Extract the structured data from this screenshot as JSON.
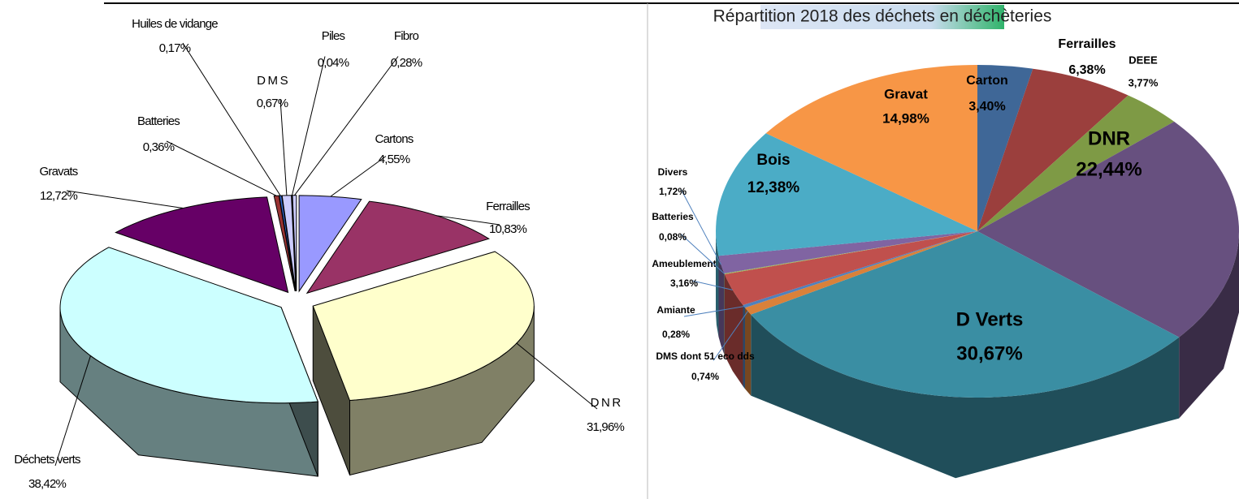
{
  "chart_data": [
    {
      "type": "pie",
      "categories": [
        "Cartons",
        "Ferrailles",
        "D N R",
        "Déchets verts",
        "Gravats",
        "Batteries",
        "Huiles de vidange",
        "D M S",
        "Piles",
        "Fibro"
      ],
      "values": [
        4.55,
        10.83,
        31.96,
        38.42,
        12.72,
        0.36,
        0.17,
        0.67,
        0.04,
        0.28
      ],
      "value_labels": [
        "4,55%",
        "10,83%",
        "31,96%",
        "38,42%",
        "12,72%",
        "0,36%",
        "0,17%",
        "0,67%",
        "0,04%",
        "0,28%"
      ],
      "colors": [
        "#9999ff",
        "#993366",
        "#ffffcc",
        "#ccffff",
        "#660066",
        "#993333",
        "#3366cc",
        "#ccccff",
        "#ffffff",
        "#ccccff"
      ]
    },
    {
      "type": "pie",
      "title": "Répartition 2018 des déchets en déchèteries",
      "categories": [
        "Carton",
        "Ferrailles",
        "DEEE",
        "DNR",
        "D Verts",
        "DMS dont 51 eco dds",
        "Amiante",
        "Ameublement",
        "Batteries",
        "Divers",
        "Bois",
        "Gravat"
      ],
      "values": [
        3.4,
        6.38,
        3.77,
        22.44,
        30.67,
        0.74,
        0.28,
        3.16,
        0.08,
        1.72,
        12.38,
        14.98
      ],
      "value_labels": [
        "3,40%",
        "6,38%",
        "3,77%",
        "22,44%",
        "30,67%",
        "0,74%",
        "0,28%",
        "3,16%",
        "0,08%",
        "1,72%",
        "12,38%",
        "14,98%"
      ],
      "colors": [
        "#3f6797",
        "#9b3f3d",
        "#7e9a45",
        "#67507f",
        "#3a8ea3",
        "#d9813a",
        "#4f81bd",
        "#c0504d",
        "#9bbb59",
        "#8064a2",
        "#4bacc6",
        "#f79646"
      ]
    }
  ]
}
